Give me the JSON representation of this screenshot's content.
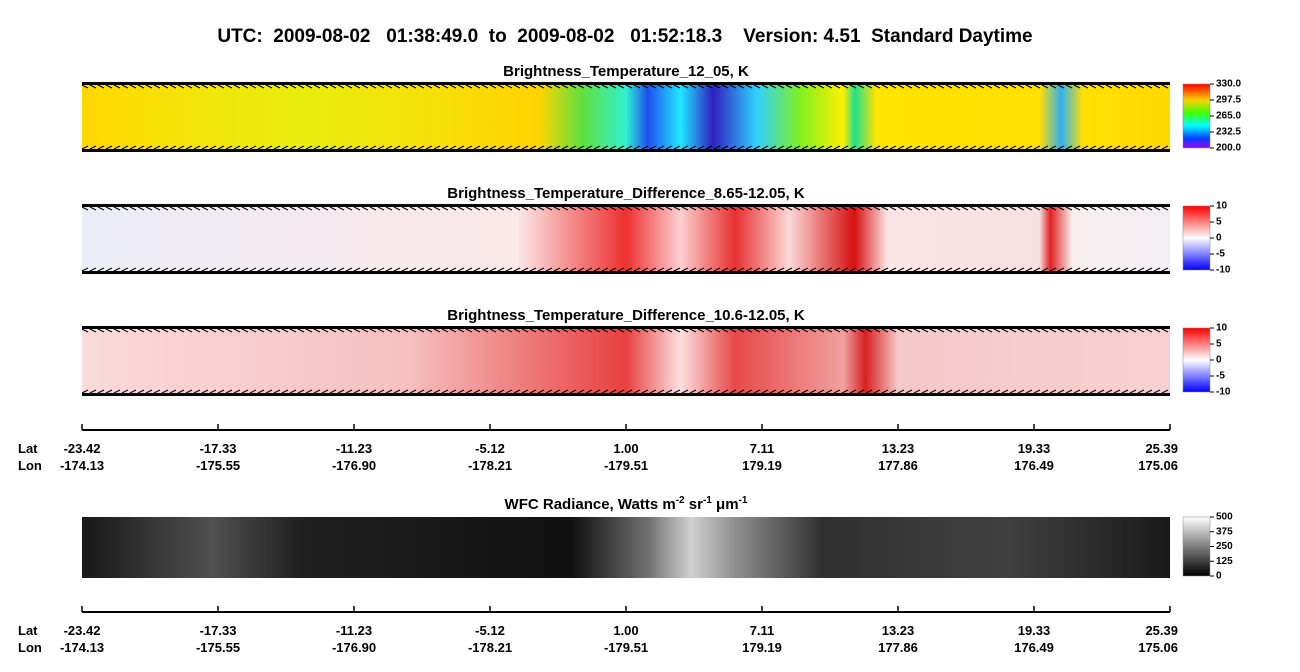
{
  "header": {
    "title": "UTC:  2009-08-02   01:38:49.0  to  2009-08-02   01:52:18.3    Version: 4.51  Standard Daytime"
  },
  "panels": [
    {
      "title": [
        "Brightness_Temperature_12_05, K"
      ],
      "colorbar": {
        "ticks": [
          {
            "value": 330,
            "label": "330.0"
          },
          {
            "value": 297.5,
            "label": "297.5"
          },
          {
            "value": 265,
            "label": "265.0"
          },
          {
            "value": 232.5,
            "label": "232.5"
          },
          {
            "value": 200,
            "label": "200.0"
          }
        ]
      }
    },
    {
      "title": [
        "Brightness_Temperature_Difference_8.65-12.05, K"
      ],
      "colorbar": {
        "ticks": [
          10,
          5,
          0,
          -5,
          -10
        ]
      }
    },
    {
      "title": [
        "Brightness_Temperature_Difference_10.6-12.05, K"
      ],
      "colorbar": {
        "ticks": [
          10,
          5,
          0,
          -5,
          -10
        ]
      }
    },
    {
      "title": [
        "WFC Radiance, Watts m",
        "-2",
        " sr",
        "-1",
        " μm",
        "-1"
      ],
      "colorbar": {
        "ticks": [
          500,
          375,
          250,
          125,
          0
        ]
      }
    }
  ],
  "axis": {
    "lat_name": "Lat",
    "lon_name": "Lon",
    "lat": [
      "-23.42",
      "-17.33",
      "-11.23",
      "-5.12",
      "1.00",
      "7.11",
      "13.23",
      "19.33",
      "25.39"
    ],
    "lon": [
      "-174.13",
      "-175.55",
      "-176.90",
      "-178.21",
      "-179.51",
      "179.19",
      "177.86",
      "176.49",
      "175.06"
    ]
  }
}
